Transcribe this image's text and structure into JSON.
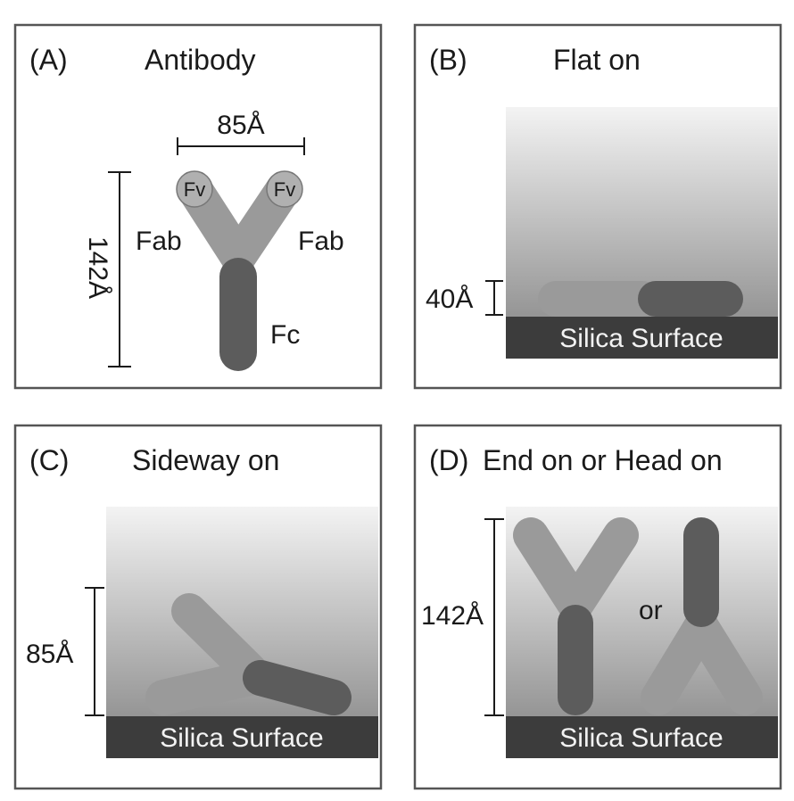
{
  "panels": {
    "a": {
      "letter": "(A)",
      "title": "Antibody",
      "width_label": "85Å",
      "height_label": "142Å",
      "fab_left": "Fab",
      "fab_right": "Fab",
      "fv_left": "Fv",
      "fv_right": "Fv",
      "fc": "Fc"
    },
    "b": {
      "letter": "(B)",
      "title": "Flat on",
      "height_label": "40Å",
      "surface": "Silica Surface"
    },
    "c": {
      "letter": "(C)",
      "title": "Sideway on",
      "height_label": "85Å",
      "surface": "Silica Surface"
    },
    "d": {
      "letter": "(D)",
      "title": "End on or Head on",
      "height_label": "142Å",
      "or_label": "or",
      "surface": "Silica Surface"
    }
  },
  "colors": {
    "fab": "#9a9a9a",
    "fc": "#5c5c5c",
    "fv": "#b0b0b0",
    "surface": "#3c3c3c",
    "border": "#555555"
  }
}
